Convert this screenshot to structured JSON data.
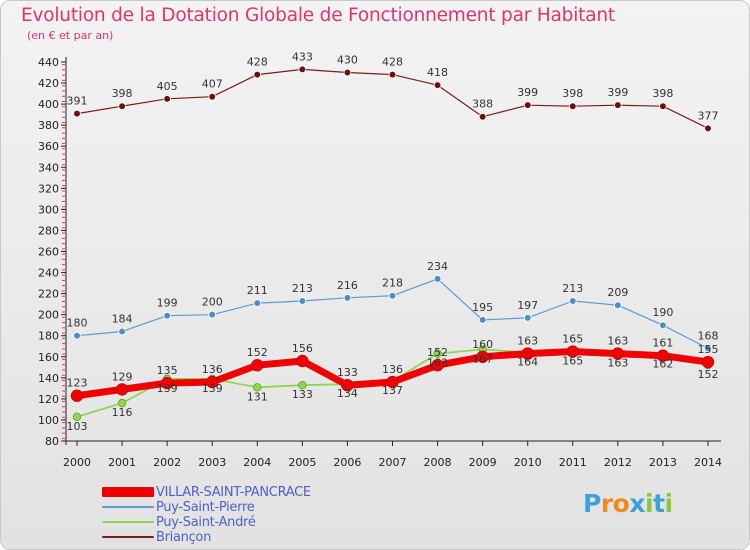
{
  "title": "Evolution de la Dotation Globale de Fonctionnement par Habitant",
  "subtitle": "(en € et par an)",
  "logo": {
    "chars": [
      "P",
      "r",
      "o",
      "x",
      "i",
      "t",
      "i"
    ],
    "colors": [
      "#3da0d8",
      "#f08a1c",
      "#f08a1c",
      "#3da0d8",
      "#8cc63f",
      "#3da0d8",
      "#8cc63f"
    ]
  },
  "chart_data": {
    "type": "line",
    "title": "Evolution de la Dotation Globale de Fonctionnement par Habitant",
    "ylabel": "(en € et par an)",
    "categories": [
      "2000",
      "2001",
      "2002",
      "2003",
      "2004",
      "2005",
      "2006",
      "2007",
      "2008",
      "2009",
      "2010",
      "2011",
      "2012",
      "2013",
      "2014"
    ],
    "ylim": [
      80,
      440
    ],
    "yticks": [
      80,
      100,
      120,
      140,
      160,
      180,
      200,
      220,
      240,
      260,
      280,
      300,
      320,
      340,
      360,
      380,
      400,
      420,
      440
    ],
    "grid": false,
    "series": [
      {
        "name": "Briançon",
        "color": "#7b1c1c",
        "values": [
          391,
          398,
          405,
          407,
          428,
          433,
          430,
          428,
          418,
          388,
          399,
          398,
          399,
          398,
          377
        ]
      },
      {
        "name": "Puy-Saint-Pierre",
        "color": "#5a9bd0",
        "values": [
          180,
          184,
          199,
          200,
          211,
          213,
          216,
          218,
          234,
          195,
          197,
          213,
          209,
          190,
          168
        ]
      },
      {
        "name": "Puy-Saint-André",
        "color": "#8fd650",
        "values": [
          103,
          116,
          139,
          139,
          131,
          133,
          134,
          137,
          163,
          167,
          164,
          165,
          163,
          162,
          152
        ]
      },
      {
        "name": "VILLAR-SAINT-PANCRACE",
        "color": "#f00000",
        "values": [
          123,
          129,
          135,
          136,
          152,
          156,
          133,
          136,
          152,
          160,
          163,
          165,
          163,
          161,
          155
        ]
      }
    ],
    "data_labels": {
      "Briançon": [
        "391",
        "398",
        "405",
        "407",
        "428",
        "433",
        "430",
        "428",
        "418",
        "388",
        "399",
        "398",
        "399",
        "398",
        "377"
      ],
      "Puy-Saint-Pierre": [
        "180",
        "184",
        "199",
        "200",
        "211",
        "213",
        "216",
        "218",
        "234",
        "195",
        "197",
        "213",
        "209",
        "190",
        "168"
      ],
      "Puy-Saint-André": [
        "103",
        "116",
        "139",
        "139",
        "131",
        "133",
        "134",
        "137",
        "163",
        "167",
        "164",
        "165",
        "163",
        "162",
        "152"
      ],
      "VILLAR-SAINT-PANCRACE": [
        "123",
        "129",
        "135",
        "136",
        "152",
        "156",
        "133",
        "136",
        "152",
        "160",
        "163",
        "165",
        "163",
        "161",
        "155"
      ]
    },
    "legend": [
      "VILLAR-SAINT-PANCRACE",
      "Puy-Saint-Pierre",
      "Puy-Saint-André",
      "Briançon"
    ],
    "legend_position": "bottom-left"
  }
}
